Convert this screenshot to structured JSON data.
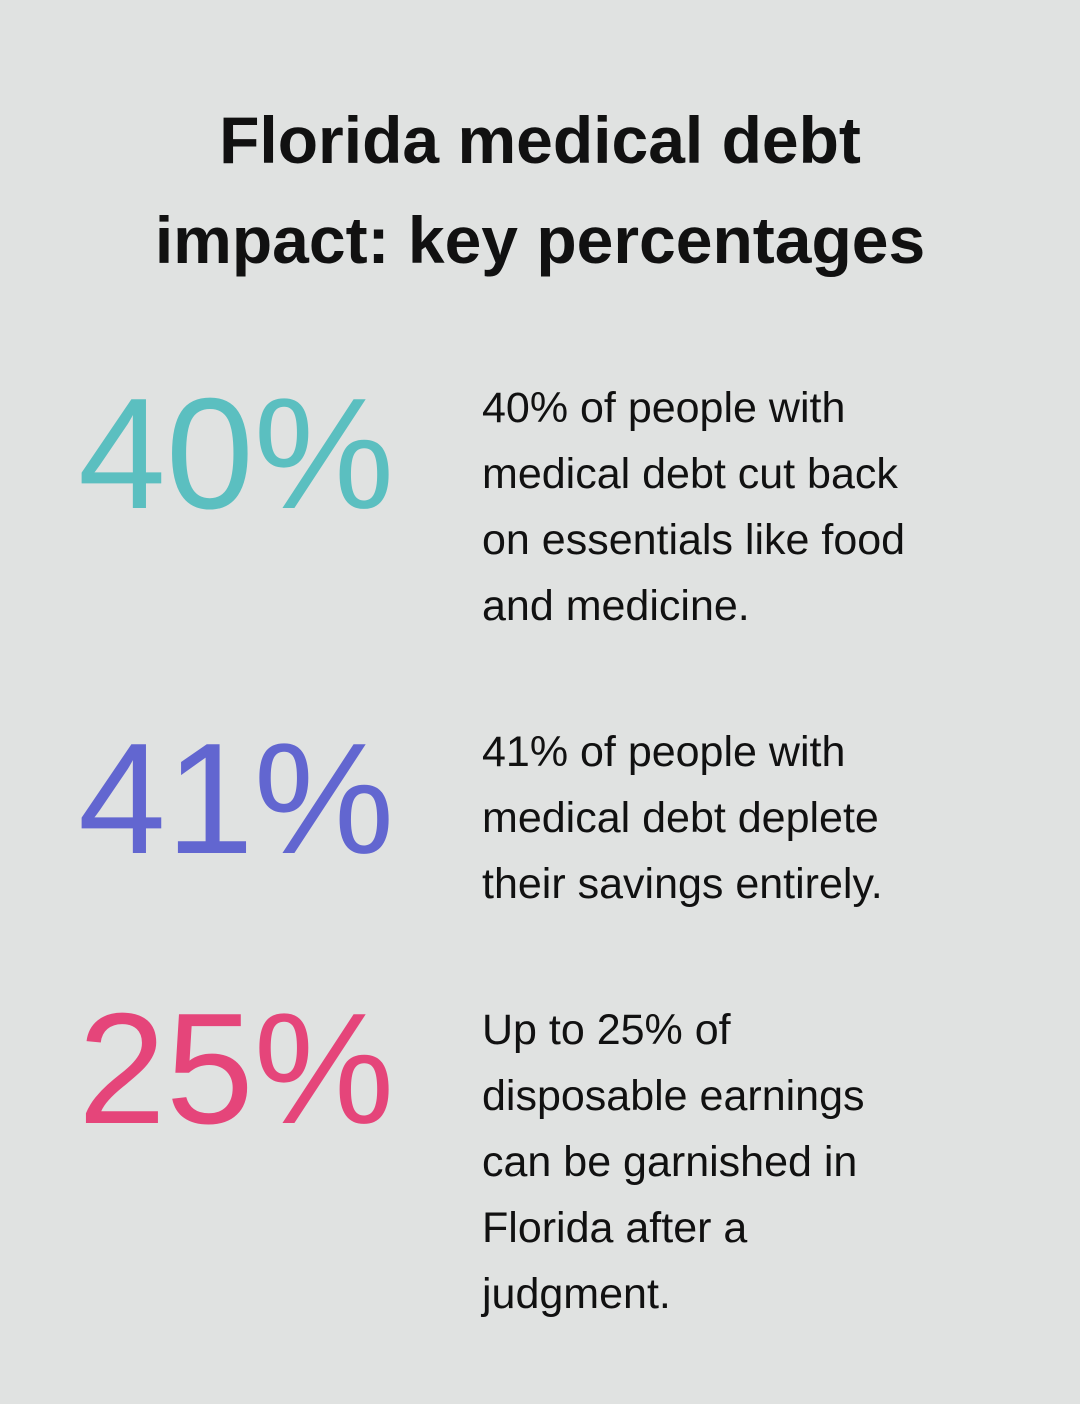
{
  "header": {
    "title_lines": [
      "Florida medical debt",
      "impact: key percentages"
    ]
  },
  "stats": [
    {
      "value": "40%",
      "color": "#5bbfc0",
      "lines": [
        "40% of people with",
        "medical debt cut back",
        "on essentials like food",
        "and medicine."
      ]
    },
    {
      "value": "41%",
      "color": "#6266d0",
      "lines": [
        "41% of people with",
        "medical debt deplete",
        "their savings entirely."
      ]
    },
    {
      "value": "25%",
      "color": "#e5457a",
      "lines": [
        "Up to 25% of",
        "disposable earnings",
        "can be garnished in",
        "Florida after a",
        "judgment."
      ]
    }
  ]
}
